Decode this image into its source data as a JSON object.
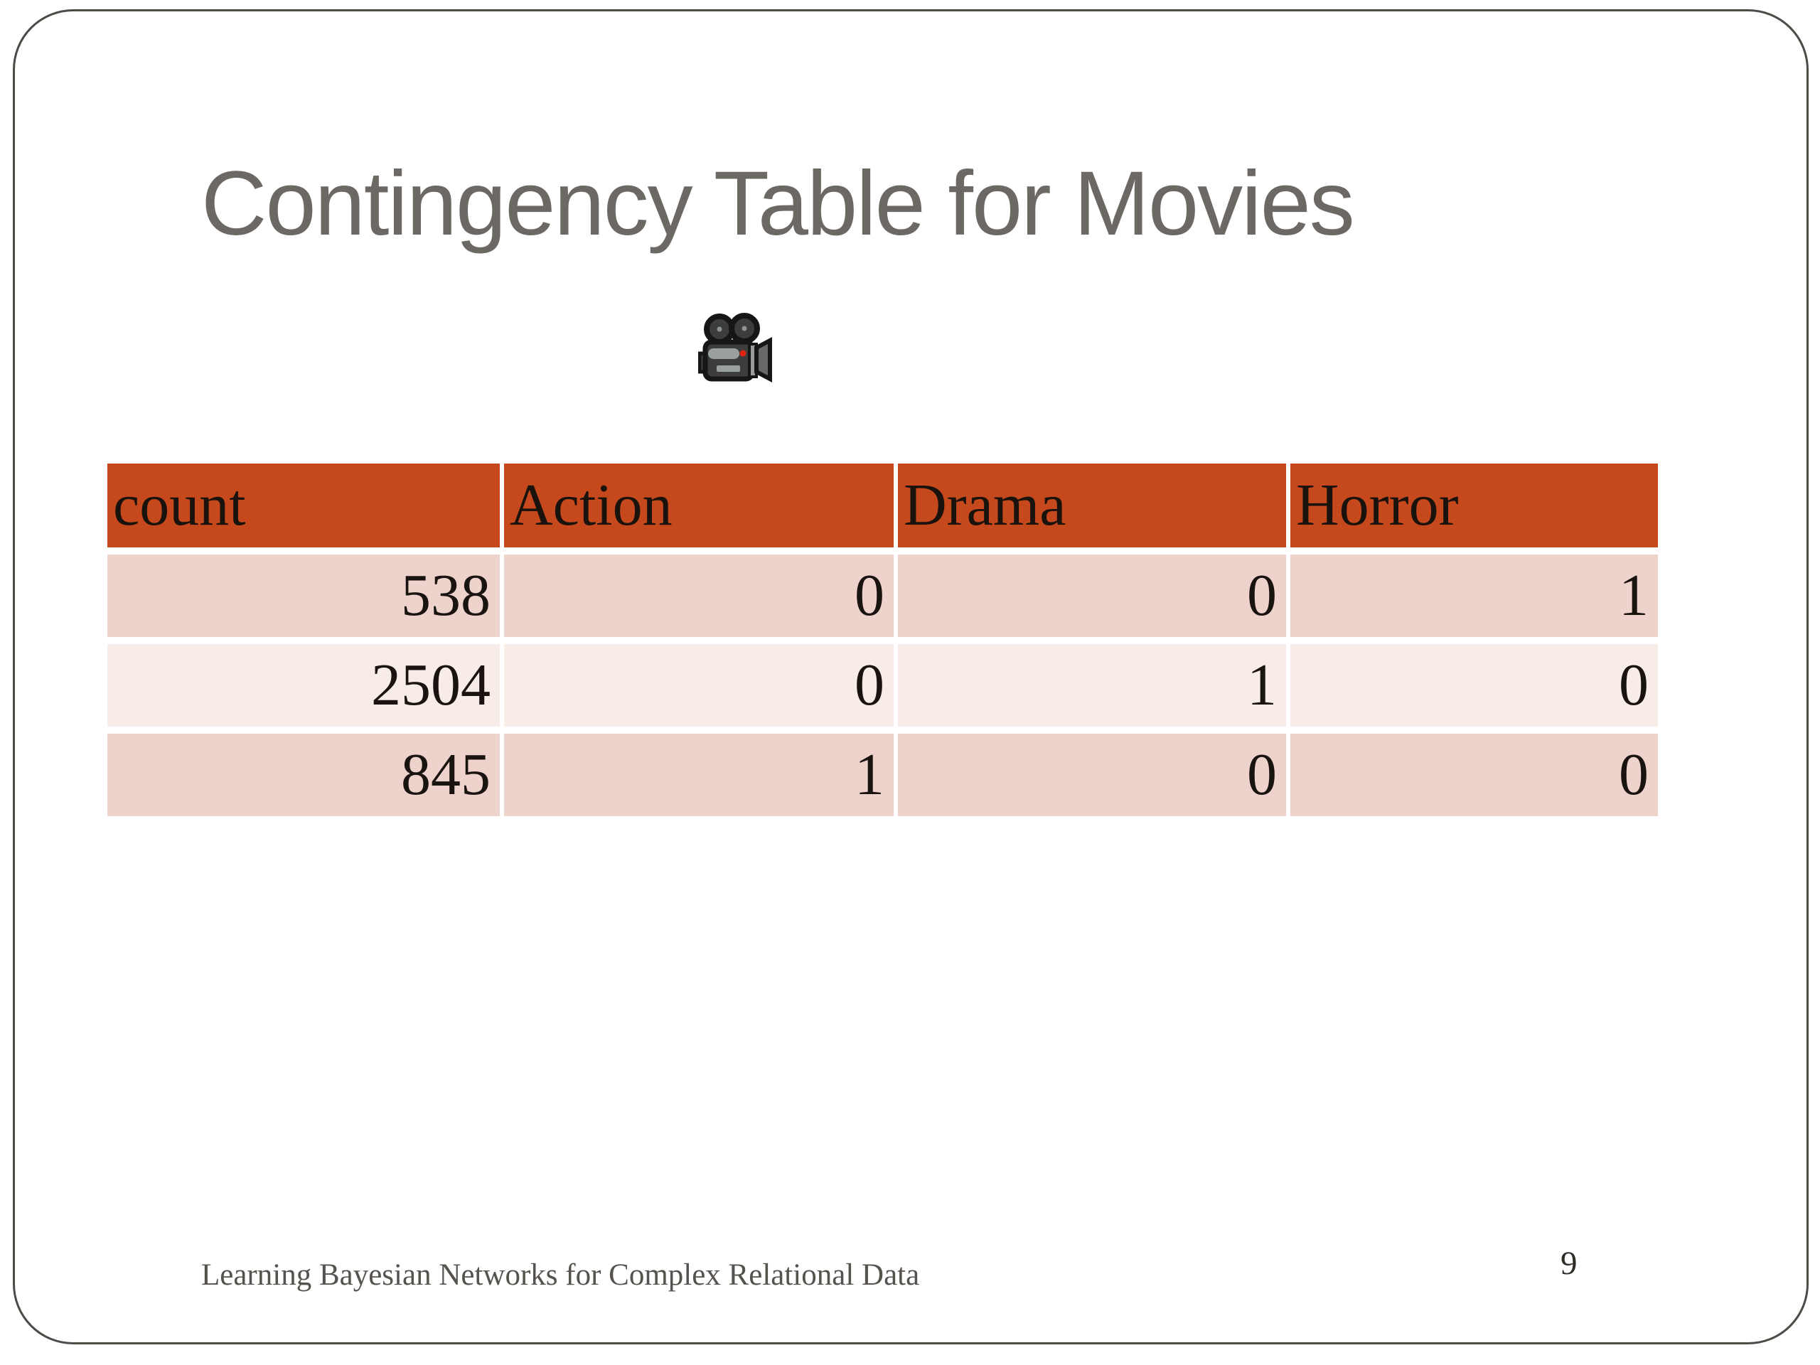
{
  "slide": {
    "title": "Contingency Table for Movies",
    "icon": "movie-camera-icon",
    "footer": "Learning Bayesian Networks for Complex Relational Data",
    "page_number": "9"
  },
  "table": {
    "columns": [
      "count",
      "Action",
      "Drama",
      "Horror"
    ],
    "rows": [
      [
        "538",
        "0",
        "0",
        "1"
      ],
      [
        "2504",
        "0",
        "1",
        "0"
      ],
      [
        "845",
        "1",
        "0",
        "0"
      ]
    ]
  },
  "colors": {
    "header_bg": "#C5491D",
    "header_text": "#1A120C",
    "row_odd_bg": "#EED2CC",
    "row_even_bg": "#F8ECE8",
    "cell_text": "#1A1410",
    "title_text": "#6C6863",
    "footer_text": "#56524D",
    "page_number_text": "#302D29",
    "border": "#4E4B47",
    "background": "#FFFFFF"
  }
}
